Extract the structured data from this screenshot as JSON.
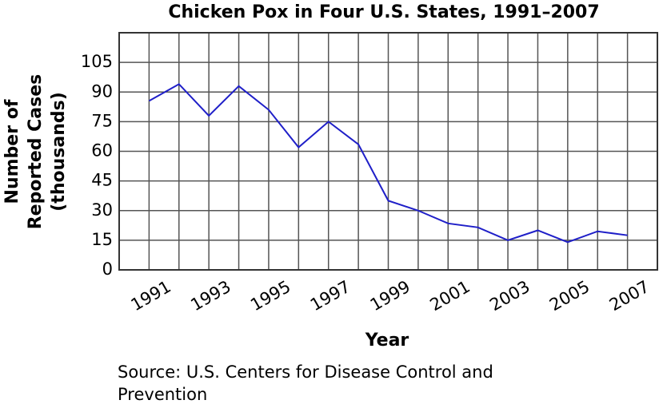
{
  "chart_data": {
    "type": "line",
    "title": "Chicken Pox in Four U.S. States, 1991–2007",
    "xlabel": "Year",
    "ylabel": [
      "Number of",
      "Reported Cases",
      "(thousands)"
    ],
    "source": "Source: U.S. Centers for Disease Control and Prevention",
    "x": [
      1991,
      1992,
      1993,
      1994,
      1995,
      1996,
      1997,
      1998,
      1999,
      2000,
      2001,
      2002,
      2003,
      2004,
      2005,
      2006,
      2007
    ],
    "series": [
      {
        "color": "#1f1fc8",
        "values": [
          85.5,
          94,
          78,
          93,
          81,
          62,
          75,
          63.5,
          35,
          30,
          23.5,
          21.5,
          15,
          20,
          14,
          19.5,
          17.5
        ]
      }
    ],
    "xlim": [
      1990,
      2008
    ],
    "xticks": [
      1991,
      1993,
      1995,
      1997,
      1999,
      2001,
      2003,
      2005,
      2007
    ],
    "ylim": [
      0,
      120
    ],
    "yticks": [
      0,
      15,
      30,
      45,
      60,
      75,
      90,
      105
    ],
    "grid": true
  }
}
